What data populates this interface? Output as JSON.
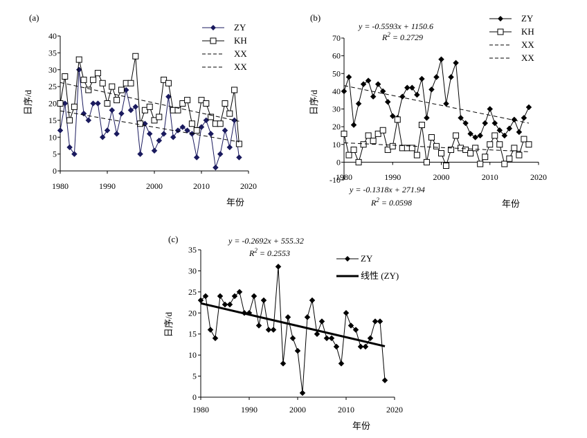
{
  "chart_data": [
    {
      "panel_label": "(a)",
      "type": "line",
      "xlabel": "年份",
      "ylabel": "日序/d",
      "xlim": [
        1980,
        2020
      ],
      "ylim": [
        0,
        40
      ],
      "xticks": [
        1980,
        1990,
        2000,
        2010,
        2020
      ],
      "yticks": [
        0,
        5,
        10,
        15,
        20,
        25,
        30,
        35,
        40
      ],
      "grid": false,
      "legend_position": "top-right",
      "series": [
        {
          "name": "ZY",
          "style": "line-marker",
          "marker": "diamond",
          "color": "#1a1a5e",
          "x": [
            1980,
            1981,
            1982,
            1983,
            1984,
            1985,
            1986,
            1987,
            1988,
            1989,
            1990,
            1991,
            1992,
            1993,
            1994,
            1995,
            1996,
            1997,
            1998,
            1999,
            2000,
            2001,
            2002,
            2003,
            2004,
            2005,
            2006,
            2007,
            2008,
            2009,
            2010,
            2011,
            2012,
            2013,
            2014,
            2015,
            2016,
            2017,
            2018
          ],
          "values": [
            12,
            20,
            7,
            5,
            30,
            17,
            15,
            20,
            20,
            10,
            12,
            18,
            11,
            17,
            24,
            18,
            19,
            5,
            14,
            11,
            6,
            9,
            11,
            22,
            10,
            12,
            13,
            12,
            11,
            4,
            13,
            15,
            11,
            1,
            5,
            12,
            7,
            15,
            4
          ]
        },
        {
          "name": "KH",
          "style": "line-marker",
          "marker": "square",
          "color": "#000000",
          "x": [
            1980,
            1981,
            1982,
            1983,
            1984,
            1985,
            1986,
            1987,
            1988,
            1989,
            1990,
            1991,
            1992,
            1993,
            1994,
            1995,
            1996,
            1997,
            1998,
            1999,
            2000,
            2001,
            2002,
            2003,
            2004,
            2005,
            2006,
            2007,
            2008,
            2009,
            2010,
            2011,
            2012,
            2013,
            2014,
            2015,
            2016,
            2017,
            2018
          ],
          "values": [
            20,
            28,
            15,
            19,
            33,
            27,
            24,
            27,
            29,
            26,
            20,
            25,
            21,
            24,
            26,
            26,
            34,
            14,
            18,
            19,
            15,
            16,
            27,
            26,
            18,
            18,
            20,
            21,
            14,
            12,
            21,
            20,
            16,
            14,
            14,
            20,
            17,
            24,
            8
          ]
        },
        {
          "name": "XX",
          "style": "trend-dashed",
          "color": "#000000",
          "x": [
            1980,
            2018
          ],
          "values": [
            17.8,
            8.6
          ]
        },
        {
          "name": "XX",
          "style": "trend-dashed",
          "color": "#000000",
          "x": [
            1980,
            2018
          ],
          "values": [
            26.2,
            14.7
          ]
        }
      ]
    },
    {
      "panel_label": "(b)",
      "type": "line",
      "xlabel": "年份",
      "ylabel": "日序/d",
      "xlim": [
        1980,
        2020
      ],
      "ylim": [
        -10,
        70
      ],
      "xticks": [
        1980,
        1990,
        2000,
        2010,
        2020
      ],
      "yticks": [
        -10,
        0,
        10,
        20,
        30,
        40,
        50,
        60,
        70
      ],
      "grid": false,
      "legend_position": "top-right",
      "annotations": [
        {
          "text": "y = -0.5593x + 1150.6"
        },
        {
          "text": "R2 = 0.2729"
        },
        {
          "text": "y = -0.1318x + 271.94"
        },
        {
          "text": "R2 = 0.0598"
        }
      ],
      "series": [
        {
          "name": "ZY",
          "style": "line-marker",
          "marker": "diamond",
          "color": "#000000",
          "x": [
            1980,
            1981,
            1982,
            1983,
            1984,
            1985,
            1986,
            1987,
            1988,
            1989,
            1990,
            1991,
            1992,
            1993,
            1994,
            1995,
            1996,
            1997,
            1998,
            1999,
            2000,
            2001,
            2002,
            2003,
            2004,
            2005,
            2006,
            2007,
            2008,
            2009,
            2010,
            2011,
            2012,
            2013,
            2014,
            2015,
            2016,
            2017,
            2018
          ],
          "values": [
            40,
            48,
            21,
            33,
            44,
            46,
            37,
            44,
            40,
            34,
            26,
            25,
            37,
            42,
            42,
            38,
            47,
            25,
            41,
            48,
            58,
            33,
            48,
            56,
            25,
            22,
            16,
            14,
            15,
            22,
            30,
            22,
            18,
            15,
            19,
            24,
            17,
            25,
            31
          ]
        },
        {
          "name": "KH",
          "style": "line-marker",
          "marker": "square",
          "color": "#000000",
          "x": [
            1980,
            1981,
            1982,
            1983,
            1984,
            1985,
            1986,
            1987,
            1988,
            1989,
            1990,
            1991,
            1992,
            1993,
            1994,
            1995,
            1996,
            1997,
            1998,
            1999,
            2000,
            2001,
            2002,
            2003,
            2004,
            2005,
            2006,
            2007,
            2008,
            2009,
            2010,
            2011,
            2012,
            2013,
            2014,
            2015,
            2016,
            2017,
            2018
          ],
          "values": [
            16,
            4,
            7,
            0,
            10,
            15,
            12,
            16,
            18,
            7,
            9,
            24,
            8,
            8,
            8,
            4,
            21,
            0,
            14,
            9,
            5,
            -2,
            7,
            15,
            8,
            7,
            5,
            8,
            -1,
            3,
            10,
            15,
            10,
            -1,
            2,
            8,
            4,
            13,
            10
          ]
        },
        {
          "name": "XX",
          "style": "trend-dashed",
          "color": "#000000",
          "x": [
            1980,
            2018
          ],
          "values": [
            43.2,
            22.0
          ]
        },
        {
          "name": "XX",
          "style": "trend-dashed",
          "color": "#000000",
          "x": [
            1980,
            2018
          ],
          "values": [
            10.9,
            5.9
          ]
        }
      ]
    },
    {
      "panel_label": "(c)",
      "type": "line",
      "xlabel": "年份",
      "ylabel": "日序/d",
      "xlim": [
        1980,
        2020
      ],
      "ylim": [
        0,
        35
      ],
      "xticks": [
        1980,
        1990,
        2000,
        2010,
        2020
      ],
      "yticks": [
        0,
        5,
        10,
        15,
        20,
        25,
        30,
        35
      ],
      "grid": false,
      "legend_position": "top-right",
      "annotations": [
        {
          "text": "y = -0.2692x + 555.32"
        },
        {
          "text": "R2 = 0.2553"
        }
      ],
      "series": [
        {
          "name": "ZY",
          "style": "line-marker",
          "marker": "diamond",
          "color": "#000000",
          "x": [
            1980,
            1981,
            1982,
            1983,
            1984,
            1985,
            1986,
            1987,
            1988,
            1989,
            1990,
            1991,
            1992,
            1993,
            1994,
            1995,
            1996,
            1997,
            1998,
            1999,
            2000,
            2001,
            2002,
            2003,
            2004,
            2005,
            2006,
            2007,
            2008,
            2009,
            2010,
            2011,
            2012,
            2013,
            2014,
            2015,
            2016,
            2017,
            2018
          ],
          "values": [
            23,
            24,
            16,
            14,
            24,
            22,
            22,
            24,
            25,
            20,
            20,
            24,
            17,
            23,
            16,
            16,
            31,
            8,
            19,
            14,
            11,
            1,
            19,
            23,
            15,
            18,
            14,
            14,
            12,
            8,
            20,
            17,
            16,
            12,
            12,
            14,
            18,
            18,
            4
          ]
        },
        {
          "name": "线性 (ZY)",
          "style": "trend-solid",
          "color": "#000000",
          "x": [
            1980,
            2018
          ],
          "values": [
            22.3,
            12.1
          ]
        }
      ]
    }
  ]
}
